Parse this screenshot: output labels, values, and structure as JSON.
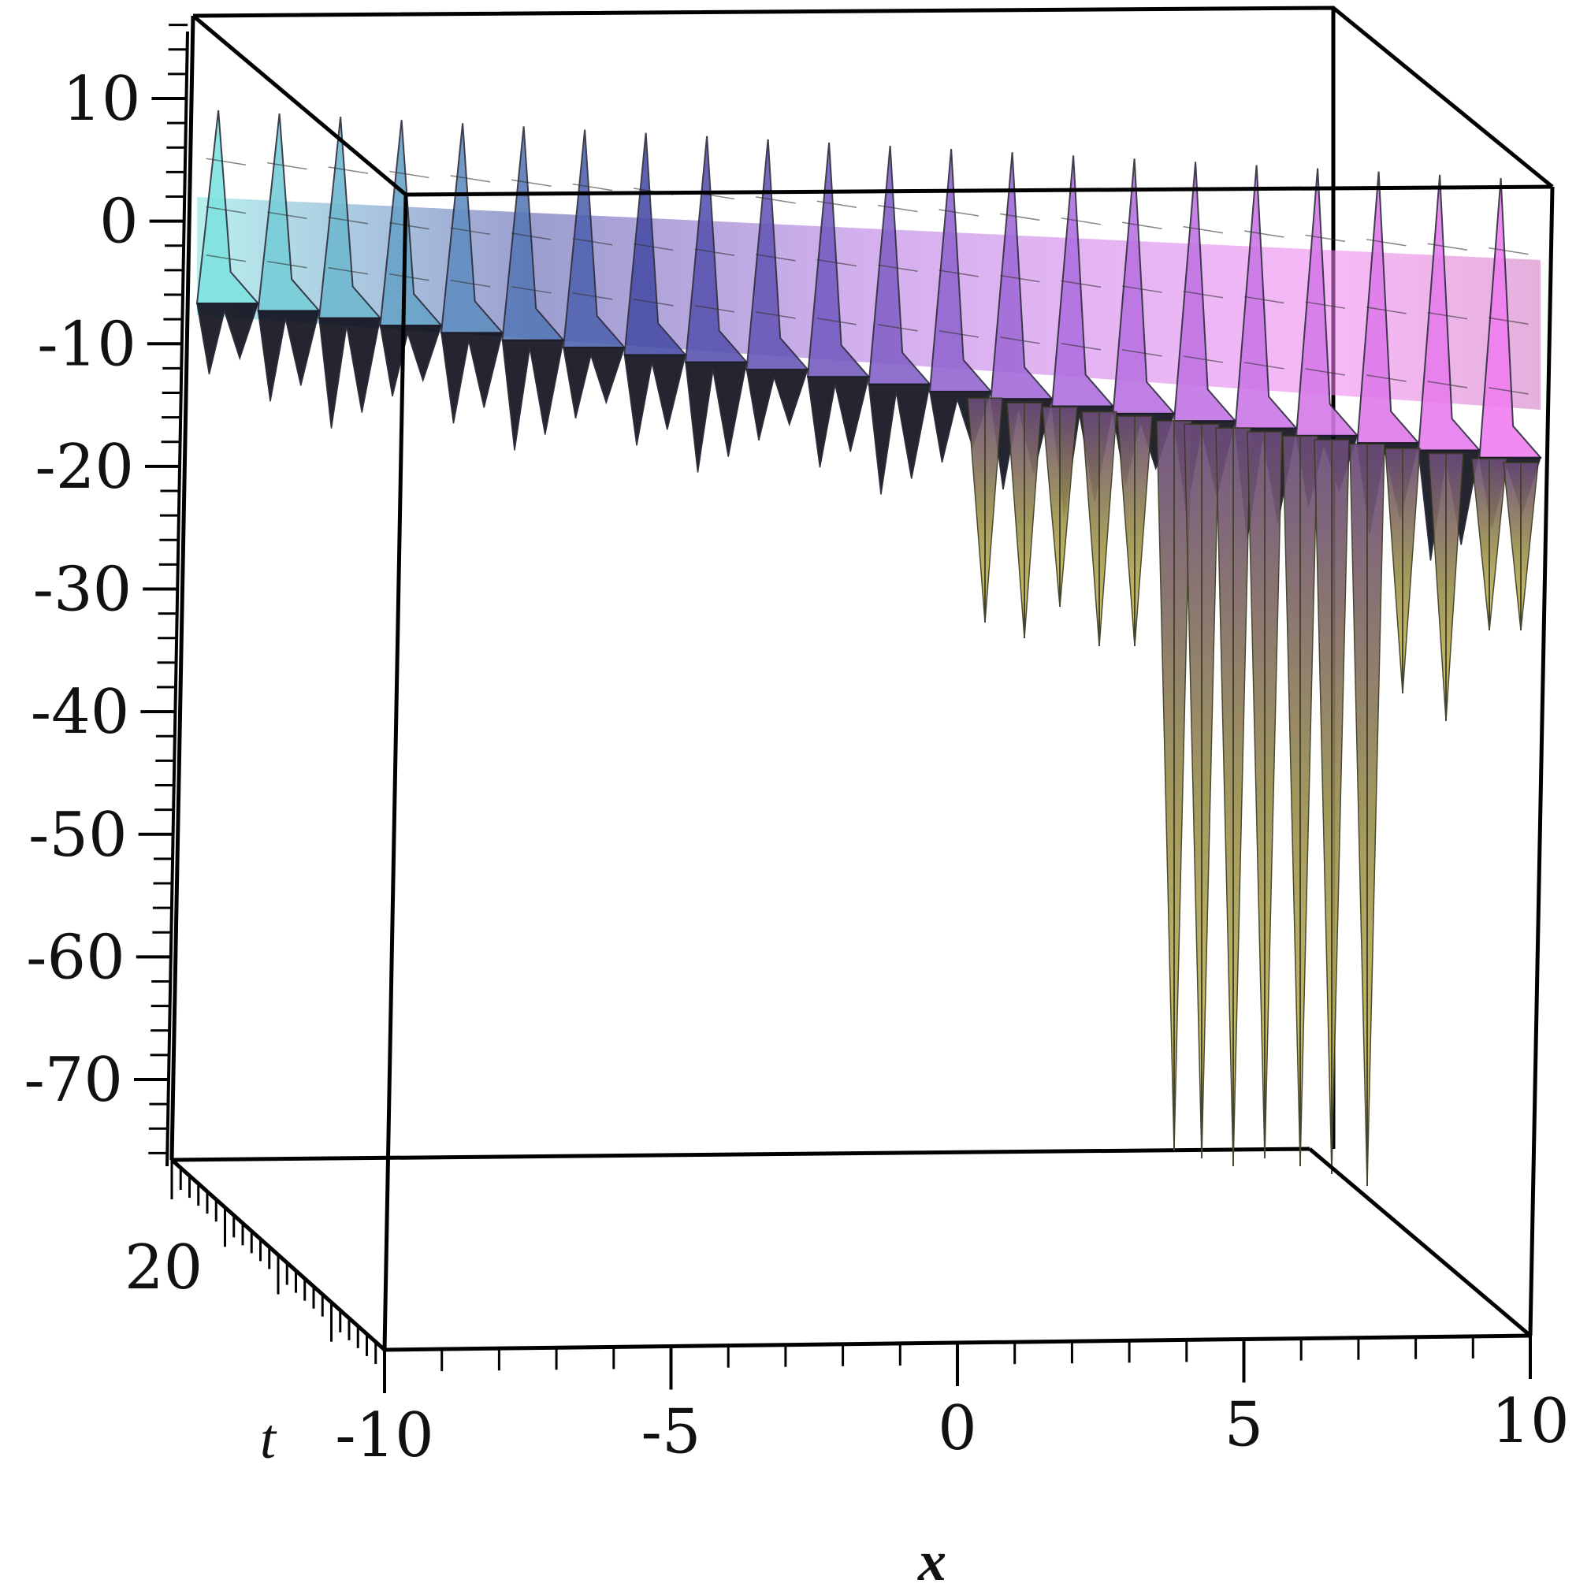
{
  "chart_data": {
    "type": "surface3d",
    "xlabel": "x",
    "tlabel": "t",
    "x_ticks": [
      -10,
      -5,
      0,
      5,
      10
    ],
    "x_tick_labels": [
      "-10",
      "-5",
      "0",
      "5",
      "10"
    ],
    "z_ticks": [
      10,
      0,
      -10,
      -20,
      -30,
      -40,
      -50,
      -60,
      -70
    ],
    "z_tick_labels": [
      "10",
      "0",
      "-10",
      "-20",
      "-30",
      "-40",
      "-50",
      "-60",
      "-70"
    ],
    "t_tick_labels": [
      "20"
    ],
    "xlim": [
      -10,
      10
    ],
    "zlim": [
      -76,
      16
    ],
    "colormap": [
      "#7fe3e0",
      "#4a4fa8",
      "#b070e0",
      "#f07ff0",
      "#d6c85a"
    ]
  }
}
